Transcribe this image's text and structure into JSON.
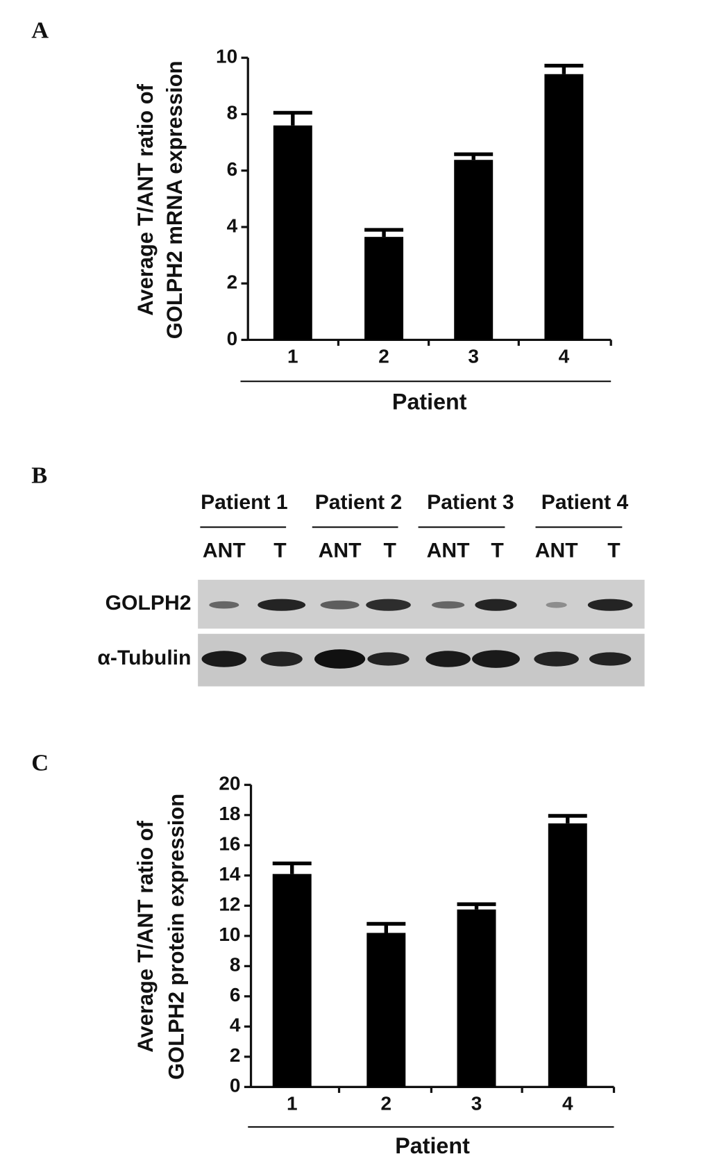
{
  "chart_data": [
    {
      "type": "bar",
      "panel": "A",
      "ylabel": [
        "Average T/ANT ratio of",
        "GOLPH2 mRNA expression"
      ],
      "xlabel": "Patient",
      "categories": [
        "1",
        "2",
        "3",
        "4"
      ],
      "values": [
        7.6,
        3.65,
        6.38,
        9.42
      ],
      "errors": [
        0.45,
        0.25,
        0.2,
        0.3
      ],
      "color": "#000000",
      "ylim": [
        0,
        10
      ],
      "yticks": [
        0,
        2,
        4,
        6,
        8,
        10
      ]
    },
    {
      "type": "bar",
      "panel": "C",
      "ylabel": [
        "Average T/ANT ratio of",
        "GOLPH2 protein expression"
      ],
      "xlabel": "Patient",
      "categories": [
        "1",
        "2",
        "3",
        "4"
      ],
      "values": [
        14.1,
        10.2,
        11.75,
        17.45
      ],
      "errors": [
        0.7,
        0.6,
        0.35,
        0.5
      ],
      "color": "#000000",
      "ylim": [
        0,
        20
      ],
      "yticks": [
        0,
        2,
        4,
        6,
        8,
        10,
        12,
        14,
        16,
        18,
        20
      ]
    }
  ],
  "blot": {
    "panel": "B",
    "patients": [
      "Patient 1",
      "Patient 2",
      "Patient 3",
      "Patient 4"
    ],
    "lanes": [
      "ANT",
      "T",
      "ANT",
      "T",
      "ANT",
      "T",
      "ANT",
      "T"
    ],
    "rows": [
      "GOLPH2",
      "α-Tubulin"
    ]
  }
}
